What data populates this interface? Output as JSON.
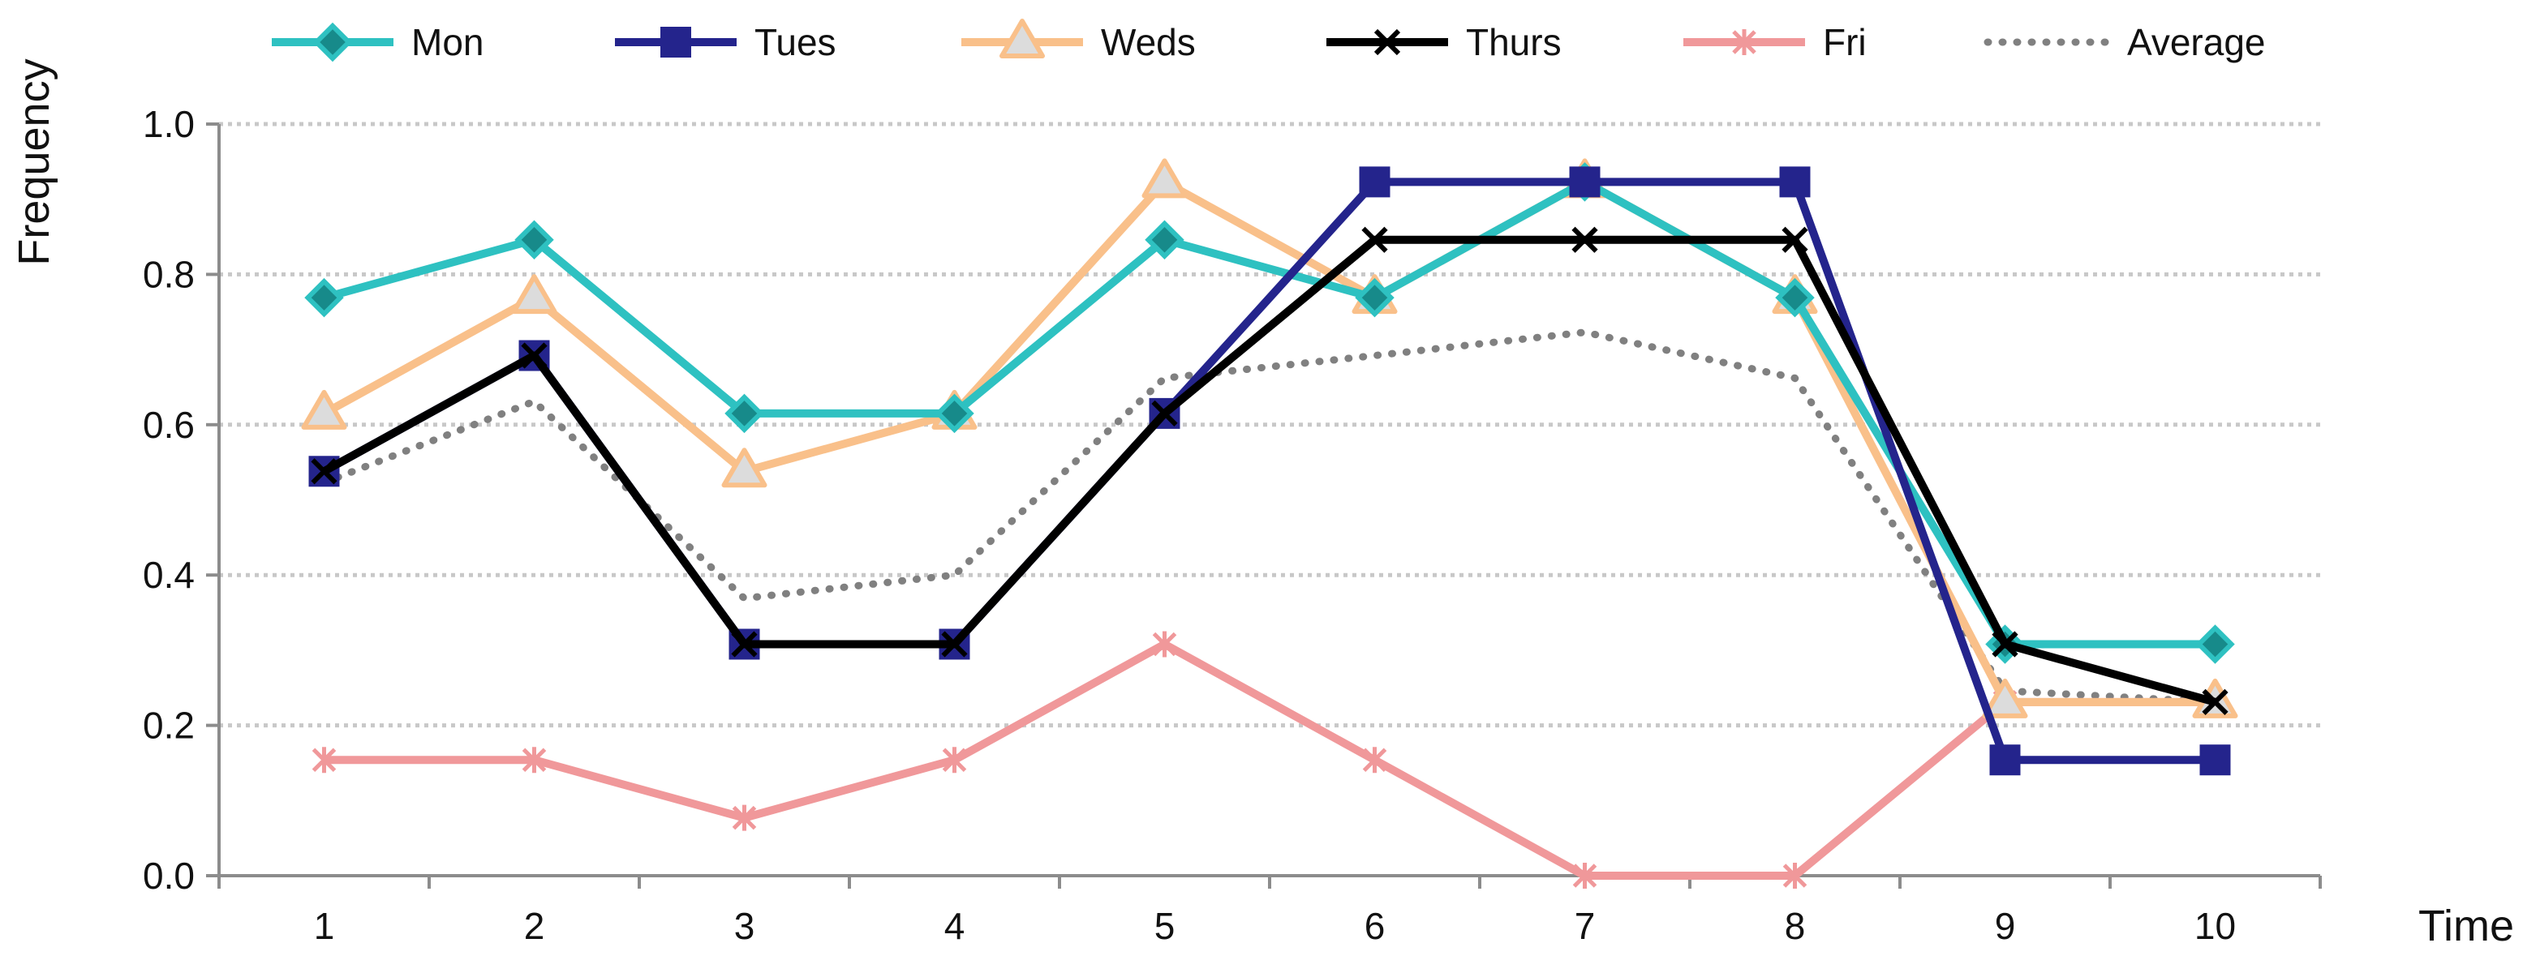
{
  "chart_data": {
    "type": "line",
    "title": "",
    "xlabel": "Time",
    "ylabel": "Frequency",
    "xlim": [
      0.5,
      10.5
    ],
    "ylim": [
      0,
      1.0
    ],
    "categories": [
      "1",
      "2",
      "3",
      "4",
      "5",
      "6",
      "7",
      "8",
      "9",
      "10"
    ],
    "y_ticks": [
      "0.0",
      "0.2",
      "0.4",
      "0.6",
      "0.8",
      "1.0"
    ],
    "y_tick_values": [
      0,
      0.2,
      0.4,
      0.6,
      0.8,
      1.0
    ],
    "grid": true,
    "legend_position": "top",
    "series": [
      {
        "name": "Mon",
        "color": "#2EC1C1",
        "marker_fill": "#178A8A",
        "marker": "diamond",
        "dash": "solid",
        "values": [
          0.769,
          0.846,
          0.615,
          0.615,
          0.846,
          0.769,
          0.923,
          0.769,
          0.308,
          0.308
        ]
      },
      {
        "name": "Tues",
        "color": "#24248C",
        "marker_fill": "#24248C",
        "marker": "square",
        "dash": "solid",
        "values": [
          0.538,
          0.692,
          0.308,
          0.308,
          0.615,
          0.923,
          0.923,
          0.923,
          0.154,
          0.154
        ]
      },
      {
        "name": "Weds",
        "color": "#F9C08A",
        "marker_fill": "#DCDCDC",
        "marker": "triangle",
        "dash": "solid",
        "values": [
          0.615,
          0.769,
          0.538,
          0.615,
          0.923,
          0.769,
          0.923,
          0.769,
          0.231,
          0.231
        ]
      },
      {
        "name": "Thurs",
        "color": "#000000",
        "marker_fill": "#000000",
        "marker": "x",
        "dash": "solid",
        "values": [
          0.538,
          0.692,
          0.308,
          0.308,
          0.615,
          0.846,
          0.846,
          0.846,
          0.308,
          0.231
        ]
      },
      {
        "name": "Fri",
        "color": "#F0989A",
        "marker_fill": "#F0989A",
        "marker": "asterisk",
        "dash": "solid",
        "values": [
          0.154,
          0.154,
          0.077,
          0.154,
          0.308,
          0.154,
          0.0,
          0.0,
          0.231,
          0.231
        ]
      },
      {
        "name": "Average",
        "color": "#808080",
        "marker_fill": "#808080",
        "marker": "none",
        "dash": "dotted",
        "values": [
          0.523,
          0.631,
          0.369,
          0.4,
          0.662,
          0.692,
          0.723,
          0.662,
          0.246,
          0.231
        ]
      }
    ]
  }
}
